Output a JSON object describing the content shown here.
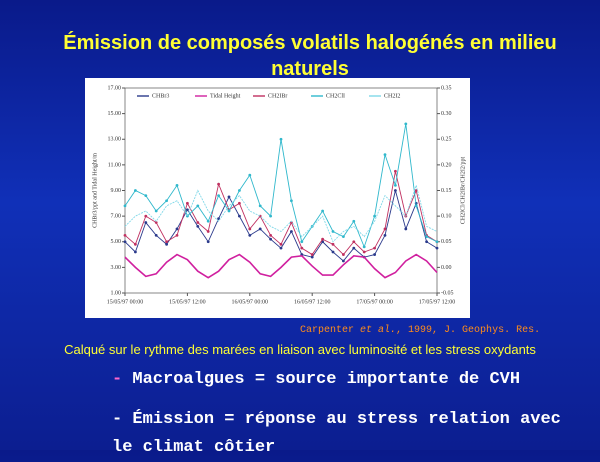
{
  "header": {
    "title": "Émission de composés volatils halogénés en milieu naturels"
  },
  "chart": {
    "type": "line",
    "categories": [
      "15/05/97 00:00",
      null,
      null,
      null,
      null,
      null,
      "15/05/97 12:00",
      null,
      null,
      null,
      null,
      null,
      "16/05/97 00:00",
      null,
      null,
      null,
      null,
      null,
      "16/05/97 12:00",
      null,
      null,
      null,
      null,
      null,
      "17/05/97 00:00",
      null,
      null,
      null,
      null,
      null,
      "17/05/97 12:00"
    ],
    "y_label": "CHBr3/ppt and Tidal Height/m",
    "y2_label": "CH2ICl/CH2IBr/CH2I2/ppt",
    "ylim": [
      1,
      17
    ],
    "yticks": [
      {
        "value": 1,
        "label": "1.00"
      },
      {
        "value": 3,
        "label": "3.00"
      },
      {
        "value": 5,
        "label": "5.00"
      },
      {
        "value": 7,
        "label": "7.00"
      },
      {
        "value": 9,
        "label": "9.00"
      },
      {
        "value": 11,
        "label": "11.00"
      },
      {
        "value": 13,
        "label": "13.00"
      },
      {
        "value": 15,
        "label": "15.00"
      },
      {
        "value": 17,
        "label": "17.00"
      }
    ],
    "y2lim": [
      -0.05,
      0.35
    ],
    "y2ticks": [
      -0.05,
      {
        "value": 0,
        "label": "0.00"
      },
      0.05,
      {
        "value": 0.1,
        "label": "0.10"
      },
      0.15,
      {
        "value": 0.2,
        "label": "0.20"
      },
      0.25,
      {
        "value": 0.3,
        "label": "0.30"
      },
      0.35
    ],
    "series": [
      {
        "name": "CHBr3",
        "color": "#2b3a8c",
        "markers": true,
        "values": [
          5.0,
          4.2,
          6.5,
          5.5,
          4.8,
          6.0,
          7.5,
          6.2,
          5.0,
          6.8,
          8.5,
          7.0,
          5.5,
          6.0,
          5.2,
          4.5,
          5.8,
          4.0,
          3.8,
          5.0,
          4.2,
          3.5,
          4.5,
          3.8,
          4.0,
          5.5,
          9.0,
          6.0,
          8.0,
          5.0,
          4.5
        ]
      },
      {
        "name": "Tidal Height",
        "color": "#d0209f",
        "markers": false,
        "values": [
          3.8,
          3.0,
          2.3,
          2.5,
          3.4,
          4.0,
          3.6,
          2.7,
          2.2,
          2.7,
          3.6,
          4.0,
          3.4,
          2.5,
          2.3,
          3.0,
          3.8,
          3.9,
          3.1,
          2.4,
          2.4,
          3.2,
          3.9,
          3.8,
          2.9,
          2.2,
          2.6,
          3.5,
          4.0,
          3.5,
          2.6
        ]
      },
      {
        "name": "CH2IBr",
        "color": "#c03060",
        "markers": true,
        "values": [
          5.5,
          4.8,
          7.0,
          6.5,
          5.0,
          5.5,
          8.0,
          6.5,
          5.8,
          9.5,
          7.5,
          8.0,
          6.0,
          7.0,
          5.5,
          4.8,
          6.5,
          4.5,
          4.0,
          5.2,
          4.8,
          4.0,
          5.0,
          4.2,
          4.5,
          6.0,
          10.5,
          7.0,
          9.0,
          5.5,
          5.0
        ]
      },
      {
        "name": "CH2ClI",
        "color": "#30b8cc",
        "markers": true,
        "axis": "y2",
        "values": [
          0.12,
          0.15,
          0.14,
          0.11,
          0.13,
          0.16,
          0.1,
          0.12,
          0.09,
          0.14,
          0.11,
          0.15,
          0.18,
          0.12,
          0.1,
          0.25,
          0.13,
          0.05,
          0.08,
          0.11,
          0.07,
          0.06,
          0.09,
          0.04,
          0.1,
          0.22,
          0.16,
          0.28,
          0.12,
          0.06,
          0.05
        ]
      },
      {
        "name": "CH2I2",
        "color": "#80d8e8",
        "markers": false,
        "axis": "y2",
        "values": [
          0.08,
          0.1,
          0.11,
          0.09,
          0.12,
          0.13,
          0.1,
          0.15,
          0.11,
          0.09,
          0.12,
          0.14,
          0.11,
          0.1,
          0.08,
          0.07,
          0.09,
          0.06,
          0.08,
          0.1,
          0.05,
          0.07,
          0.08,
          0.06,
          0.09,
          0.14,
          0.12,
          0.1,
          0.16,
          0.08,
          0.07
        ]
      }
    ]
  },
  "citation": {
    "author": "Carpenter",
    "etal": "et al.",
    "rest": ", 1999, J. Geophys. Res."
  },
  "caption": "Calqué sur le rythme des marées en liaison avec luminosité et les stress oxydants",
  "bullets": [
    {
      "marker": "-",
      "text": "Macroalgues = source importante de CVH"
    },
    {
      "marker": "-",
      "text": "Émission = réponse au stress  relation avec le climat côtier"
    }
  ]
}
